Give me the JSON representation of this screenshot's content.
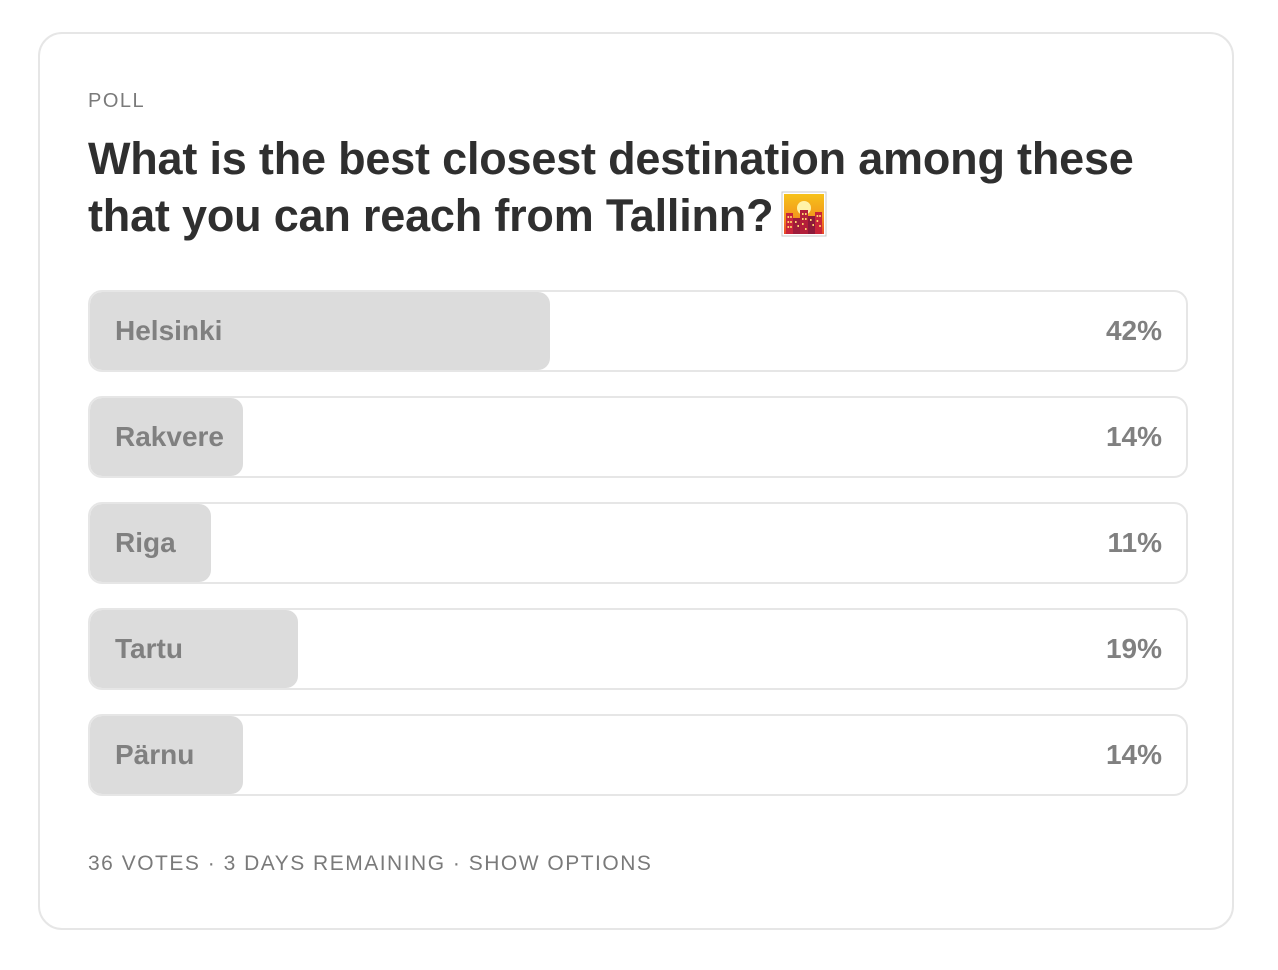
{
  "poll": {
    "kicker": "POLL",
    "question": "What is the best closest destination among these that you can reach from Tallinn?",
    "question_emoji": "cityscape-at-dusk-icon",
    "options": [
      {
        "label": "Helsinki",
        "percent_text": "42%",
        "percent": 42
      },
      {
        "label": "Rakvere",
        "percent_text": "14%",
        "percent": 14
      },
      {
        "label": "Riga",
        "percent_text": "11%",
        "percent": 11
      },
      {
        "label": "Tartu",
        "percent_text": "19%",
        "percent": 19
      },
      {
        "label": "Pärnu",
        "percent_text": "14%",
        "percent": 14
      }
    ],
    "footer": {
      "votes": "36 VOTES",
      "separator": " · ",
      "remaining": "3 DAYS REMAINING",
      "show_options": "SHOW OPTIONS"
    }
  },
  "colors": {
    "bar_fill": "#dcdcdc",
    "border": "#e6e6e6",
    "title_text": "#2f2f2f",
    "muted_text": "#7a7a7a"
  }
}
